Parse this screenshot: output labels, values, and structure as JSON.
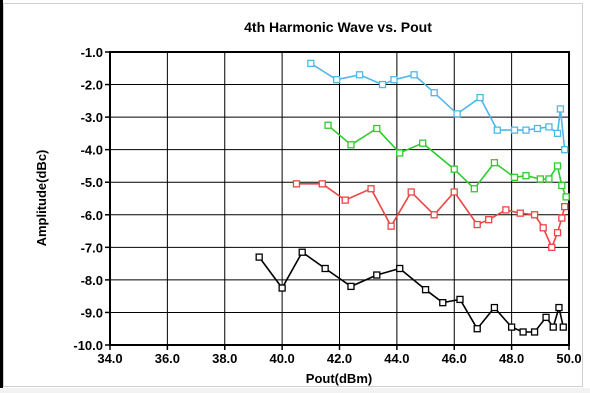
{
  "chart_data": {
    "type": "line",
    "title": "4th Harmonic Wave  vs. Pout",
    "xlabel": "Pout(dBm)",
    "ylabel": "Amplitude(dBc)",
    "xlim": [
      34.0,
      50.0
    ],
    "ylim": [
      -10.0,
      -1.0
    ],
    "x_ticks": [
      "34.0",
      "36.0",
      "38.0",
      "40.0",
      "42.0",
      "44.0",
      "46.0",
      "48.0",
      "50.0"
    ],
    "y_ticks": [
      "-1.0",
      "-2.0",
      "-3.0",
      "-4.0",
      "-5.0",
      "-6.0",
      "-7.0",
      "-8.0",
      "-9.0",
      "-10.0"
    ],
    "grid": true,
    "marker": "square",
    "series": [
      {
        "color": "#4fb8e8",
        "points": [
          [
            41.0,
            -1.35
          ],
          [
            41.9,
            -1.85
          ],
          [
            42.7,
            -1.7
          ],
          [
            43.5,
            -2.0
          ],
          [
            43.9,
            -1.85
          ],
          [
            44.6,
            -1.7
          ],
          [
            45.3,
            -2.25
          ],
          [
            46.1,
            -2.9
          ],
          [
            46.9,
            -2.4
          ],
          [
            47.5,
            -3.4
          ],
          [
            48.1,
            -3.4
          ],
          [
            48.5,
            -3.4
          ],
          [
            48.9,
            -3.35
          ],
          [
            49.3,
            -3.3
          ],
          [
            49.6,
            -3.5
          ],
          [
            49.7,
            -2.75
          ],
          [
            49.85,
            -4.0
          ]
        ]
      },
      {
        "color": "#2ecc2e",
        "points": [
          [
            41.6,
            -3.25
          ],
          [
            42.4,
            -3.85
          ],
          [
            43.3,
            -3.35
          ],
          [
            44.1,
            -4.1
          ],
          [
            44.9,
            -3.8
          ],
          [
            46.0,
            -4.6
          ],
          [
            46.7,
            -5.2
          ],
          [
            47.4,
            -4.4
          ],
          [
            48.1,
            -4.85
          ],
          [
            48.5,
            -4.8
          ],
          [
            49.0,
            -4.9
          ],
          [
            49.3,
            -4.9
          ],
          [
            49.6,
            -4.5
          ],
          [
            49.75,
            -5.1
          ],
          [
            49.9,
            -5.45
          ]
        ]
      },
      {
        "color": "#ee4444",
        "points": [
          [
            40.5,
            -5.05
          ],
          [
            41.4,
            -5.05
          ],
          [
            42.2,
            -5.55
          ],
          [
            43.1,
            -5.2
          ],
          [
            43.8,
            -6.35
          ],
          [
            44.5,
            -5.3
          ],
          [
            45.3,
            -6.0
          ],
          [
            46.0,
            -5.3
          ],
          [
            46.8,
            -6.3
          ],
          [
            47.2,
            -6.15
          ],
          [
            47.8,
            -5.85
          ],
          [
            48.3,
            -5.95
          ],
          [
            48.8,
            -6.0
          ],
          [
            49.1,
            -6.4
          ],
          [
            49.4,
            -7.0
          ],
          [
            49.6,
            -6.55
          ],
          [
            49.75,
            -6.1
          ],
          [
            49.85,
            -5.75
          ]
        ]
      },
      {
        "color": "#000000",
        "points": [
          [
            39.2,
            -7.3
          ],
          [
            40.0,
            -8.25
          ],
          [
            40.7,
            -7.15
          ],
          [
            41.5,
            -7.65
          ],
          [
            42.4,
            -8.2
          ],
          [
            43.3,
            -7.85
          ],
          [
            44.1,
            -7.65
          ],
          [
            45.0,
            -8.3
          ],
          [
            45.6,
            -8.7
          ],
          [
            46.2,
            -8.6
          ],
          [
            46.8,
            -9.5
          ],
          [
            47.4,
            -8.85
          ],
          [
            48.0,
            -9.45
          ],
          [
            48.4,
            -9.6
          ],
          [
            48.8,
            -9.6
          ],
          [
            49.2,
            -9.15
          ],
          [
            49.45,
            -9.45
          ],
          [
            49.65,
            -8.85
          ],
          [
            49.8,
            -9.45
          ]
        ]
      }
    ]
  }
}
